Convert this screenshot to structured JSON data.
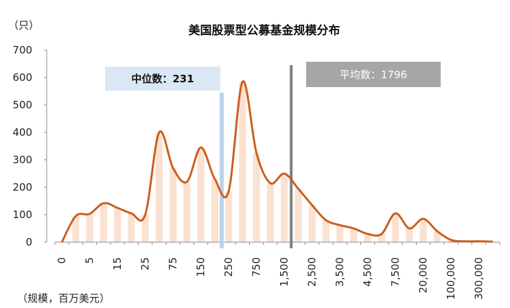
{
  "chart_data": {
    "type": "bar",
    "title": "美国股票型公募基金规模分布",
    "y_unit_label": "（只）",
    "x_unit_label": "（规模，百万美元）",
    "ylim": [
      0,
      700
    ],
    "yticks": [
      0,
      100,
      200,
      300,
      400,
      500,
      600,
      700
    ],
    "xtick_labels": [
      "0",
      "5",
      "15",
      "25",
      "75",
      "150",
      "250",
      "750",
      "1,500",
      "2,500",
      "3,500",
      "4,500",
      "7,500",
      "20,000",
      "100,000",
      "300,000"
    ],
    "values": [
      0,
      95,
      103,
      142,
      125,
      105,
      100,
      400,
      270,
      220,
      345,
      230,
      185,
      585,
      325,
      215,
      250,
      195,
      135,
      80,
      62,
      50,
      30,
      30,
      105,
      50,
      85,
      40,
      8,
      3,
      3,
      2
    ],
    "median": {
      "label": "中位数：231",
      "bin_index": 11.5,
      "color": "#bdd3ec"
    },
    "mean": {
      "label": "平均数：1796",
      "bin_index": 16.5,
      "color": "#7f7f7f"
    },
    "bar_color": "#fbe1d0",
    "line_color": "#c95f1e",
    "grid": false,
    "legend": "none"
  }
}
